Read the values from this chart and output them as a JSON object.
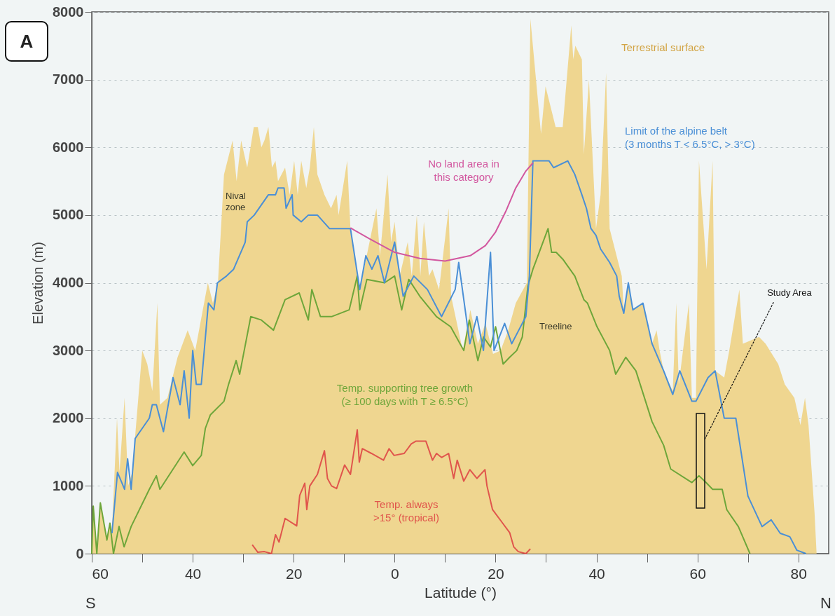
{
  "chart_data": {
    "type": "line",
    "xlabel": "Latitude (°)",
    "ylabel": "Elevation (m)",
    "xlim": [
      -60,
      86
    ],
    "ylim": [
      0,
      8000
    ],
    "xticks": [
      {
        "value": -60,
        "label": "60"
      },
      {
        "value": -50,
        "label": null
      },
      {
        "value": -40,
        "label": "40"
      },
      {
        "value": -30,
        "label": null
      },
      {
        "value": -20,
        "label": "20"
      },
      {
        "value": -10,
        "label": null
      },
      0,
      {
        "value": 10,
        "label": null
      },
      20,
      {
        "value": 30,
        "label": null
      },
      40,
      {
        "value": 50,
        "label": null
      },
      60,
      {
        "value": 70,
        "label": null
      },
      80
    ],
    "yticks": [
      0,
      1000,
      2000,
      3000,
      4000,
      5000,
      6000,
      7000,
      8000
    ],
    "grid": "y",
    "series": [
      {
        "name": "Terrestrial surface",
        "type": "area",
        "color": "#efd690",
        "x": [
          -60,
          -59.7,
          -59,
          -58.3,
          -57,
          -56.4,
          -56,
          -55,
          -54.5,
          -53.5,
          -52.8,
          -52,
          -50,
          -49,
          -48,
          -47,
          -46.5,
          -45,
          -43,
          -41,
          -39.5,
          -37,
          -36,
          -35,
          -33.8,
          -32.1,
          -31.3,
          -30.4,
          -29.2,
          -27.9,
          -27.1,
          -26.4,
          -25.8,
          -25,
          -24.3,
          -23.6,
          -23.1,
          -21.7,
          -20.8,
          -19.9,
          -19.2,
          -18.5,
          -17.5,
          -16.8,
          -16,
          -15.3,
          -13.9,
          -12.6,
          -11.5,
          -11.1,
          -9.4,
          -8.75,
          -6.9,
          -3.6,
          -2.9,
          -1.4,
          -0.7,
          0,
          1,
          2.6,
          3.4,
          4.4,
          5.1,
          5.8,
          6.8,
          7.5,
          8.8,
          10.7,
          11.2,
          13.5,
          15,
          16.5,
          18,
          19.5,
          21,
          22.5,
          24,
          26.2,
          26.9,
          29,
          29.9,
          31.9,
          33.3,
          35,
          35.4,
          35.8,
          37.1,
          37.5,
          38.5,
          39.9,
          40.8,
          41.9,
          42.6,
          45,
          45.4,
          46.3,
          47.2,
          49.2,
          51,
          51.9,
          52.5,
          53.3,
          55.1,
          55.8,
          56.3,
          58.3,
          58.9,
          59.7,
          60.3,
          61.8,
          63,
          63.5,
          65.3,
          66.3,
          68.3,
          69,
          72.2,
          73.5,
          76,
          77.3,
          79.2,
          80.4,
          81.3,
          82,
          83.2,
          83.6
        ],
        "values": [
          0,
          700,
          100,
          750,
          250,
          450,
          350,
          2000,
          1200,
          2300,
          1000,
          1200,
          3000,
          2800,
          2400,
          3700,
          2200,
          2300,
          2900,
          3300,
          3000,
          4000,
          3700,
          4000,
          5600,
          6100,
          5500,
          6100,
          5700,
          6300,
          6300,
          6000,
          6100,
          6300,
          5700,
          5800,
          5500,
          5700,
          5300,
          5800,
          5300,
          5800,
          5400,
          5700,
          6300,
          5600,
          5300,
          5100,
          5300,
          5000,
          5800,
          4800,
          3900,
          5100,
          4400,
          5600,
          4600,
          4900,
          4100,
          4600,
          4100,
          5000,
          4100,
          4900,
          4100,
          4200,
          3900,
          5100,
          3800,
          3000,
          3600,
          3100,
          3400,
          2950,
          3000,
          3300,
          3700,
          4000,
          7900,
          6200,
          6900,
          6300,
          6300,
          7800,
          7300,
          7500,
          7300,
          5900,
          7000,
          4800,
          5300,
          7100,
          4800,
          4100,
          3600,
          4000,
          3600,
          3700,
          3100,
          3300,
          3000,
          2700,
          2400,
          3700,
          2500,
          3700,
          2300,
          2300,
          5800,
          4200,
          5800,
          2700,
          2600,
          3000,
          3900,
          3100,
          3200,
          3100,
          2800,
          2500,
          2300,
          1900,
          2300,
          1900,
          600,
          0
        ]
      },
      {
        "name": "Temp. supporting tree growth\n(≥ 100 days with T ≥ 6.5°C)",
        "type": "line",
        "color": "#6ea63a",
        "x": [
          -60,
          -59.7,
          -59,
          -58.3,
          -57,
          -56.4,
          -55.7,
          -54.6,
          -53.6,
          -52.2,
          -48.6,
          -47.2,
          -46.5,
          -43,
          -41.7,
          -40,
          -38.3,
          -37.5,
          -36.5,
          -33.8,
          -32.9,
          -31.4,
          -30.7,
          -28.5,
          -26.4,
          -24,
          -21.7,
          -18.9,
          -17.1,
          -16.4,
          -14.7,
          -12.5,
          -9,
          -7.4,
          -6.9,
          -5.5,
          -2,
          0,
          1.4,
          2.8,
          5,
          8.3,
          11.1,
          13.7,
          14.8,
          16.5,
          17.6,
          19,
          20,
          21.5,
          22.8,
          24.2,
          25.3,
          26.4,
          27.4,
          30.4,
          31.1,
          32,
          33.3,
          35.7,
          37.5,
          38.2,
          40.1,
          42.6,
          43.8,
          45.8,
          47.8,
          51,
          53.3,
          54.7,
          58.9,
          60.3,
          61.7,
          63,
          64.9,
          65.8,
          68.1,
          70.4
        ],
        "values": [
          0,
          700,
          0,
          750,
          200,
          450,
          0,
          400,
          100,
          400,
          950,
          1150,
          950,
          1350,
          1500,
          1300,
          1450,
          1850,
          2050,
          2250,
          2500,
          2850,
          2650,
          3500,
          3450,
          3300,
          3750,
          3850,
          3450,
          3900,
          3500,
          3500,
          3600,
          4100,
          3600,
          4050,
          4000,
          4100,
          3600,
          4050,
          3800,
          3500,
          3350,
          3000,
          3450,
          2850,
          3200,
          3050,
          3350,
          2800,
          2900,
          3000,
          3200,
          3950,
          4200,
          4800,
          4450,
          4450,
          4350,
          4100,
          3750,
          3700,
          3350,
          3000,
          2650,
          2900,
          2700,
          1950,
          1600,
          1250,
          1050,
          1150,
          1050,
          950,
          950,
          650,
          400,
          0
        ]
      },
      {
        "name": "Temp. always\n>15° (tropical)",
        "type": "line",
        "color": "#e0554c",
        "x": [
          -28.2,
          -27.1,
          -25.8,
          -24.4,
          -23.6,
          -22.9,
          -21.7,
          -19.4,
          -18.8,
          -17.8,
          -17.4,
          -16.8,
          -15.3,
          -13.9,
          -13.3,
          -12.5,
          -11.5,
          -9.9,
          -8.75,
          -7.4,
          -7,
          -6.4,
          -4.6,
          -2.2,
          -1.1,
          -0.1,
          1.9,
          3.3,
          4.2,
          6.2,
          7.5,
          8.3,
          9.3,
          10.7,
          11.7,
          12.4,
          13.7,
          14.9,
          16.3,
          17.9,
          18.3,
          19.4,
          21.4,
          22.8,
          23.6,
          24.5,
          26,
          26.9
        ],
        "values": [
          130,
          20,
          30,
          0,
          280,
          170,
          520,
          410,
          860,
          1040,
          650,
          1000,
          1170,
          1520,
          1110,
          1000,
          960,
          1310,
          1170,
          1830,
          1350,
          1550,
          1480,
          1380,
          1550,
          1450,
          1480,
          1620,
          1660,
          1660,
          1380,
          1480,
          1420,
          1480,
          1110,
          1380,
          1070,
          1240,
          1110,
          1240,
          1000,
          650,
          450,
          310,
          100,
          30,
          0,
          70
        ]
      },
      {
        "name": "Limit of the alpine belt\n(3 months T < 6.5°C, > 3°C)",
        "type": "line",
        "color": "#4a8fd6",
        "x": [
          -56,
          -54.9,
          -53.5,
          -52.9,
          -52.2,
          -51.4,
          -48.6,
          -48,
          -47.2,
          -45.8,
          -43.9,
          -42.5,
          -41.7,
          -40.7,
          -40,
          -39.3,
          -38.3,
          -36.9,
          -35.8,
          -35.1,
          -33.3,
          -31.9,
          -29.6,
          -29.2,
          -27.8,
          -25,
          -23.6,
          -23.1,
          -21.9,
          -21.5,
          -20.3,
          -20.1,
          -18.5,
          -17.1,
          -15.3,
          -12.9,
          -11.5,
          -8.75,
          -6.9,
          -5.7,
          -4.5,
          -3.3,
          -2,
          0,
          1.7,
          3.8,
          6.5,
          9.3,
          12,
          12.7,
          14.9,
          16.3,
          17.6,
          19,
          19.7,
          21.8,
          23.2,
          24.6,
          26,
          26.7,
          27.4,
          29,
          30.6,
          31.5,
          34.3,
          35.7,
          37.1,
          38,
          38.9,
          39.9,
          40.8,
          42.6,
          44,
          44.5,
          45.4,
          46.3,
          47.2,
          49.2,
          51,
          53.3,
          55.1,
          56.5,
          58.9,
          59.7,
          62.1,
          63.5,
          65.3,
          67.6,
          70,
          72.8,
          74.6,
          76.4,
          78.3,
          79.7,
          81.5
        ],
        "values": [
          300,
          1200,
          950,
          1400,
          950,
          1700,
          2000,
          2200,
          2200,
          1800,
          2600,
          2200,
          2700,
          2000,
          3000,
          2500,
          2500,
          3700,
          3600,
          4000,
          4100,
          4200,
          4600,
          4900,
          5000,
          5300,
          5300,
          5400,
          5400,
          5100,
          5300,
          5000,
          4900,
          5000,
          5000,
          4800,
          4800,
          4800,
          3900,
          4400,
          4200,
          4400,
          4000,
          4600,
          3800,
          4100,
          3900,
          3500,
          3900,
          4300,
          3100,
          3500,
          3000,
          4450,
          3000,
          3400,
          3100,
          3300,
          3500,
          4100,
          5800,
          5800,
          5800,
          5700,
          5800,
          5600,
          5300,
          5100,
          4800,
          4700,
          4500,
          4300,
          4100,
          3800,
          3550,
          4000,
          3600,
          3700,
          3100,
          2700,
          2350,
          2700,
          2250,
          2250,
          2600,
          2700,
          2000,
          2000,
          850,
          400,
          500,
          300,
          250,
          50,
          0
        ]
      },
      {
        "name": "No land area in\nthis category",
        "type": "line",
        "color": "#d2579f",
        "x": [
          -8.75,
          -5,
          0,
          5,
          10,
          15,
          18,
          20,
          22,
          24,
          26,
          27.4
        ],
        "values": [
          4810,
          4650,
          4450,
          4360,
          4320,
          4400,
          4550,
          4750,
          5050,
          5400,
          5650,
          5770
        ]
      }
    ],
    "annotations": [
      "A",
      "S",
      "N",
      "Nival\nzone",
      "Treeline",
      "Study Area"
    ]
  }
}
